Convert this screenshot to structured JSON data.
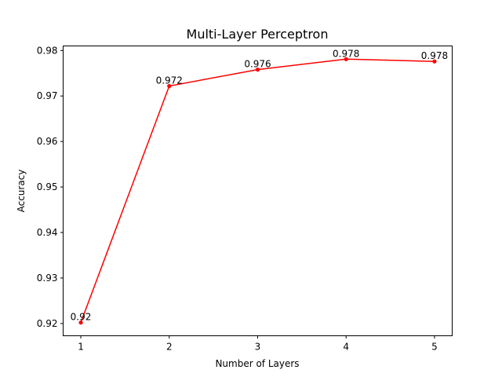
{
  "chart_data": {
    "type": "line",
    "title": "Multi-Layer Perceptron",
    "xlabel": "Number of Layers",
    "ylabel": "Accuracy",
    "x": [
      1,
      2,
      3,
      4,
      5
    ],
    "xticks": [
      "1",
      "2",
      "3",
      "4",
      "5"
    ],
    "yticks": [
      "0.92",
      "0.93",
      "0.94",
      "0.95",
      "0.96",
      "0.97",
      "0.98"
    ],
    "xlim": [
      0.8,
      5.2
    ],
    "ylim": [
      0.9173,
      0.981
    ],
    "series": [
      {
        "values": [
          0.9202,
          0.9722,
          0.9758,
          0.9781,
          0.9776
        ],
        "labels": [
          "0.92",
          "0.972",
          "0.976",
          "0.978",
          "0.978"
        ],
        "color": "#ff0000",
        "marker": "circle"
      }
    ],
    "grid": false,
    "legend": "none"
  }
}
